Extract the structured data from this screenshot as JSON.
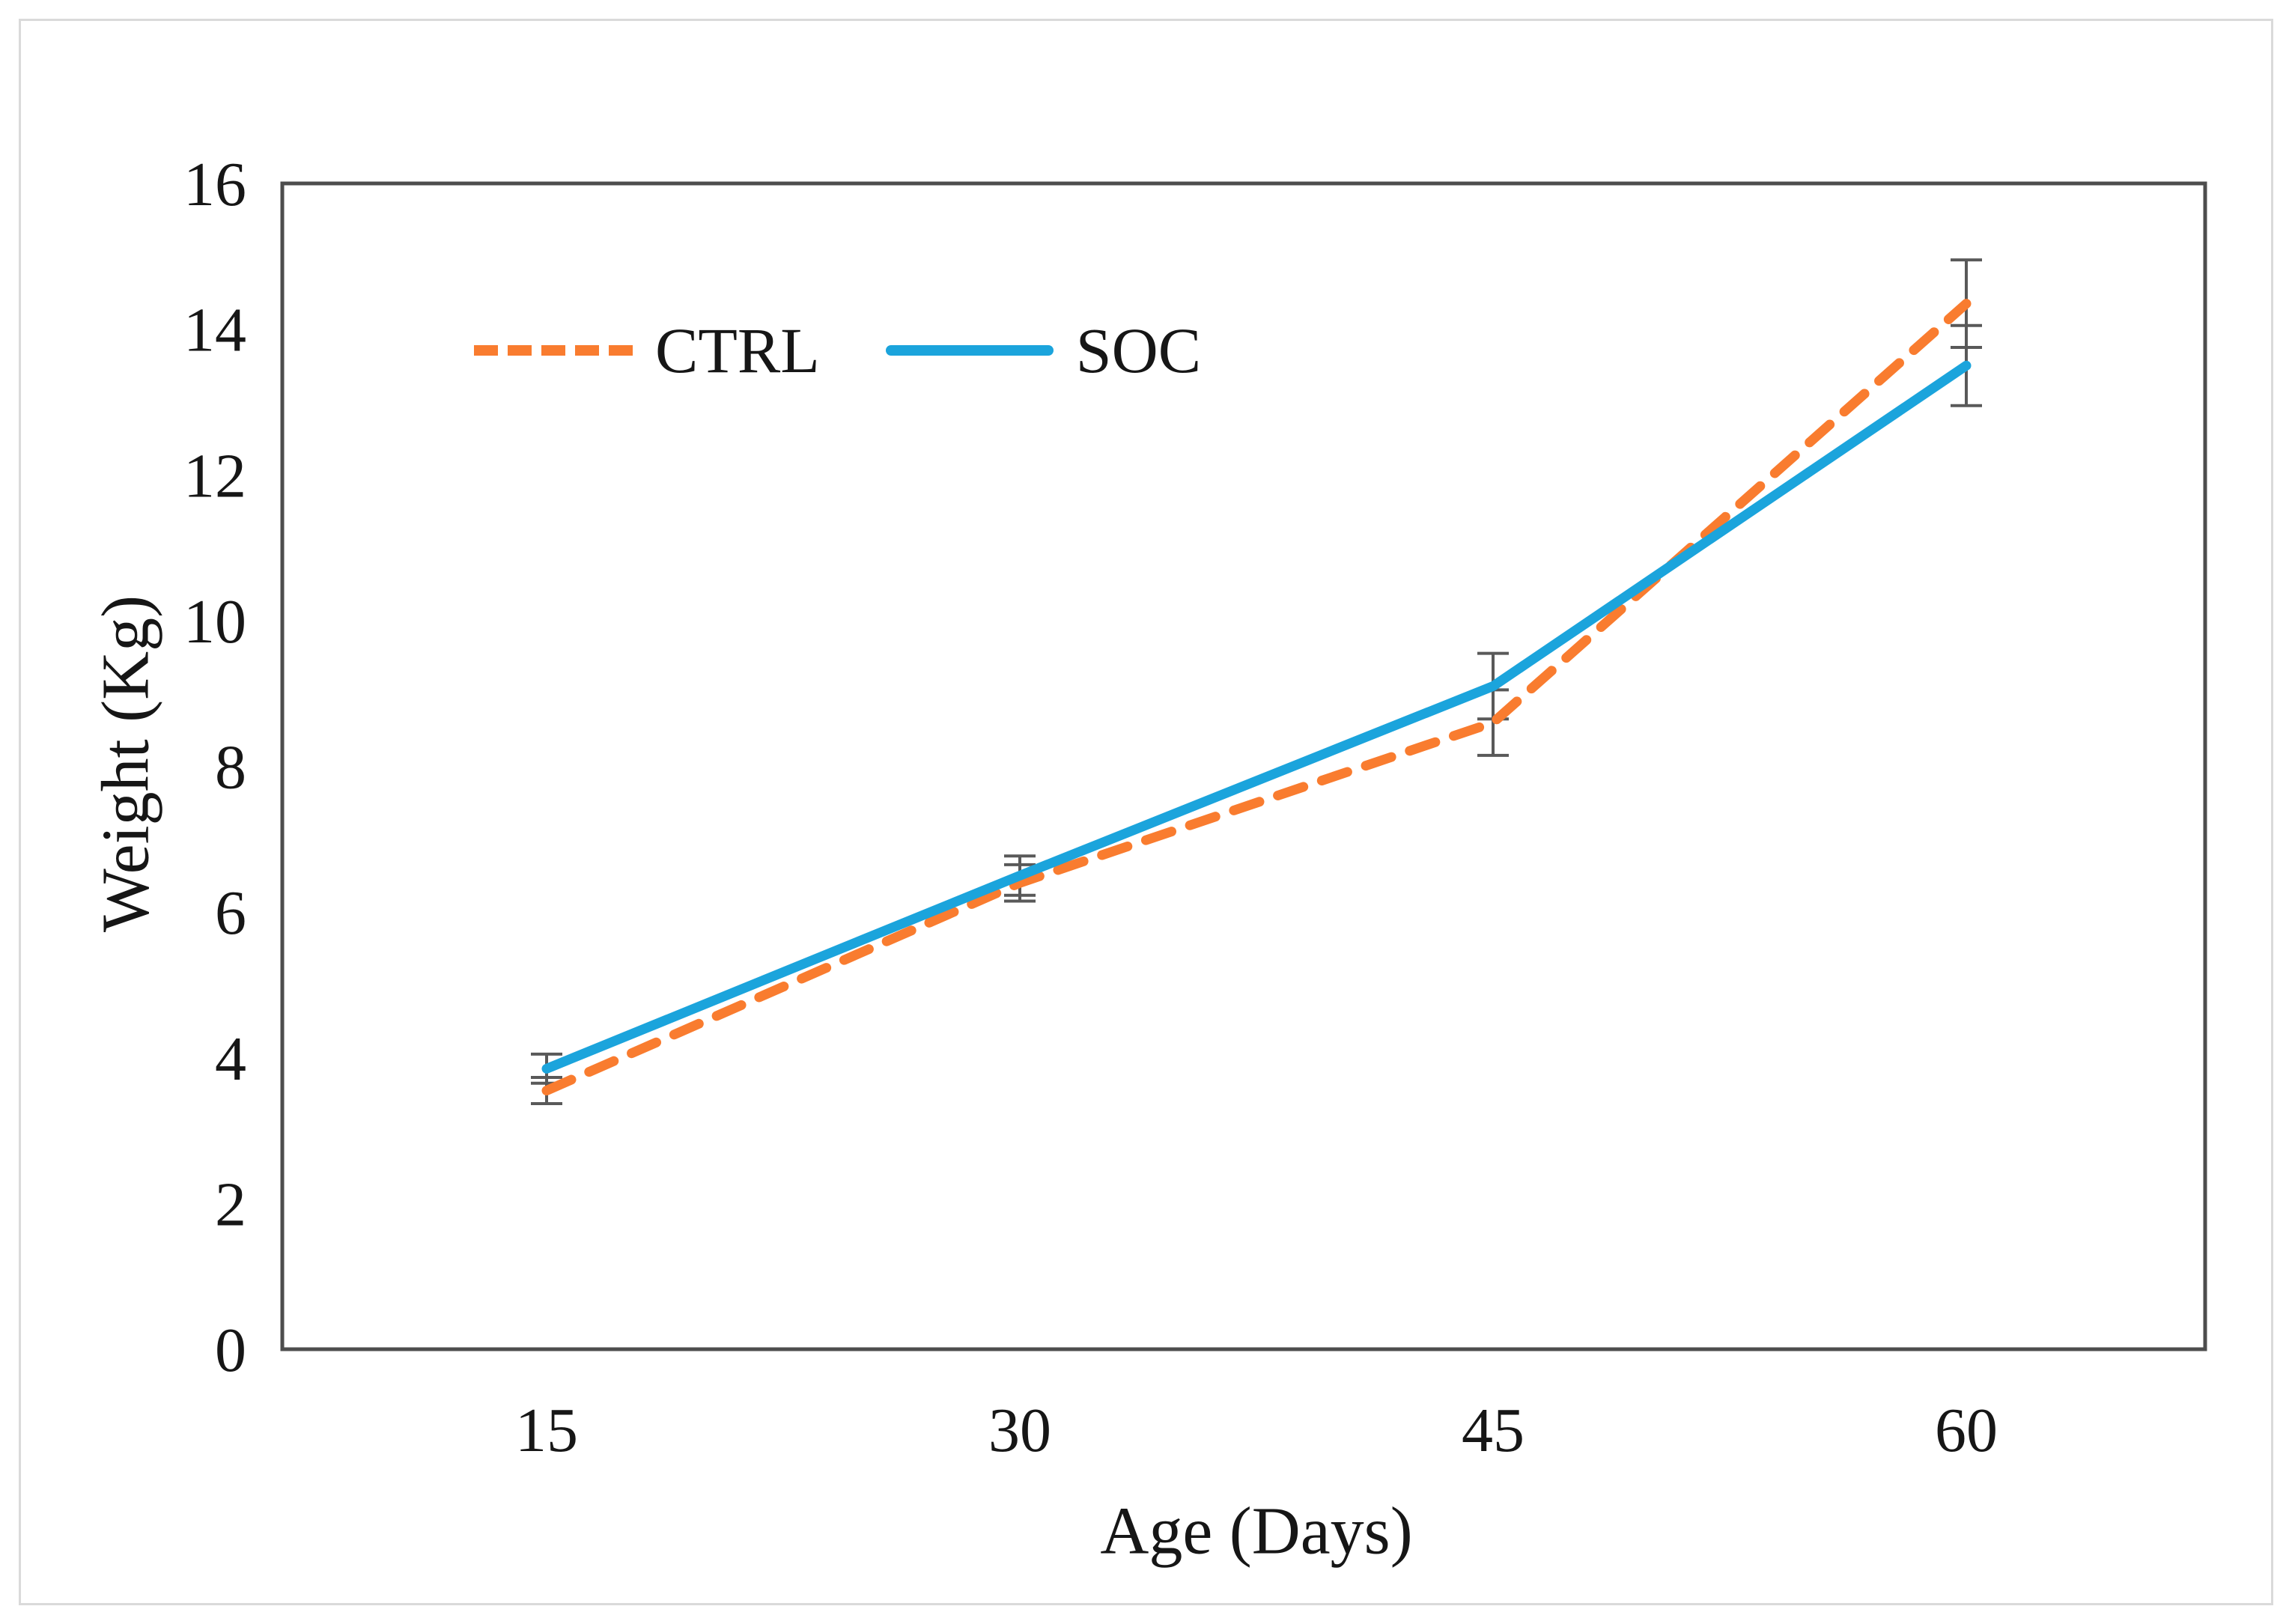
{
  "figure": {
    "y_axis_title": "Weight (Kg)",
    "x_axis_title": "Age (Days)"
  },
  "chart_data": {
    "type": "line",
    "x": [
      15,
      30,
      45,
      60
    ],
    "xticklabels": [
      "15",
      "30",
      "45",
      "60"
    ],
    "yticklabels": [
      "0",
      "2",
      "4",
      "6",
      "8",
      "10",
      "12",
      "14",
      "16"
    ],
    "series": [
      {
        "name": "CTRL",
        "values": [
          3.55,
          6.4,
          8.6,
          14.35
        ],
        "errors": [
          0.18,
          0.25,
          0.45,
          0.6
        ],
        "color": "#f97c2f",
        "style": "dashed"
      },
      {
        "name": "SOC",
        "values": [
          3.85,
          6.5,
          9.1,
          13.5
        ],
        "errors": [
          0.2,
          0.27,
          0.45,
          0.55
        ],
        "color": "#1ba4dc",
        "style": "solid"
      }
    ],
    "title": "",
    "xlabel": "Age (Days)",
    "ylabel": "Weight (Kg)",
    "ylim": [
      0,
      16
    ],
    "ytick_step": 2,
    "grid": false,
    "legend_position": "inside-top-left",
    "error_bar_color": "#595959",
    "axis_color": "#4d4d4d",
    "text_color": "#161616"
  }
}
